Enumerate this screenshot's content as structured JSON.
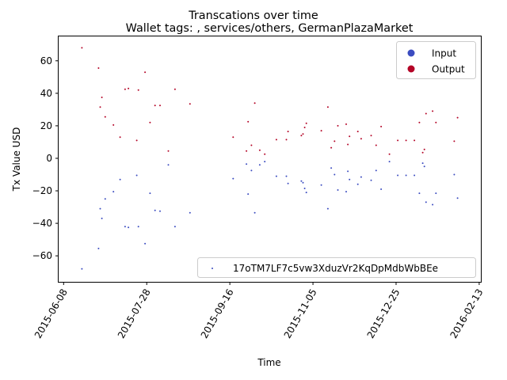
{
  "chart_data": {
    "type": "scatter",
    "title": "Transcations over time",
    "subtitle": "Wallet tags: , services/others, GermanPlazaMarket",
    "xlabel": "Time",
    "ylabel": "Tx Value USD",
    "xlim": [
      "2015-06-05",
      "2016-02-14"
    ],
    "ylim": [
      -76,
      75
    ],
    "x_ticks": [
      "2015-06-08",
      "2015-07-28",
      "2015-09-16",
      "2015-11-05",
      "2015-12-25",
      "2016-02-13"
    ],
    "y_ticks": [
      -60,
      -40,
      -20,
      0,
      20,
      40,
      60
    ],
    "grid": false,
    "legend_upper": {
      "placement": "top-right",
      "entries": [
        {
          "label": "Input",
          "color": "#3b4cc0"
        },
        {
          "label": "Output",
          "color": "#b40426"
        }
      ]
    },
    "legend_lower": {
      "placement": "bottom-right",
      "label": "17oTM7LF7c5vw3XduzVr2KqDpMdbWbBEe",
      "color": "#3b4cc0"
    },
    "series": [
      {
        "name": "Output",
        "color": "#b40426",
        "points": [
          [
            "2015-06-19",
            68
          ],
          [
            "2015-06-29",
            55.5
          ],
          [
            "2015-06-30",
            31.5
          ],
          [
            "2015-07-01",
            37.5
          ],
          [
            "2015-07-03",
            25.5
          ],
          [
            "2015-07-08",
            20.5
          ],
          [
            "2015-07-12",
            13
          ],
          [
            "2015-07-15",
            42.5
          ],
          [
            "2015-07-17",
            43
          ],
          [
            "2015-07-22",
            11
          ],
          [
            "2015-07-23",
            42
          ],
          [
            "2015-07-27",
            53
          ],
          [
            "2015-07-30",
            22
          ],
          [
            "2015-08-02",
            32.5
          ],
          [
            "2015-08-05",
            32.5
          ],
          [
            "2015-08-10",
            4.5
          ],
          [
            "2015-08-14",
            42.5
          ],
          [
            "2015-08-23",
            33.5
          ],
          [
            "2015-09-18",
            13
          ],
          [
            "2015-09-26",
            4.5
          ],
          [
            "2015-09-27",
            22.5
          ],
          [
            "2015-09-29",
            8
          ],
          [
            "2015-10-01",
            34
          ],
          [
            "2015-10-04",
            5
          ],
          [
            "2015-10-07",
            2.5
          ],
          [
            "2015-10-14",
            11.5
          ],
          [
            "2015-10-20",
            11.5
          ],
          [
            "2015-10-21",
            16.5
          ],
          [
            "2015-10-29",
            14
          ],
          [
            "2015-10-30",
            15
          ],
          [
            "2015-10-31",
            19
          ],
          [
            "2015-11-01",
            21.5
          ],
          [
            "2015-11-10",
            17
          ],
          [
            "2015-11-14",
            31.5
          ],
          [
            "2015-11-16",
            6.5
          ],
          [
            "2015-11-18",
            10.5
          ],
          [
            "2015-11-20",
            20
          ],
          [
            "2015-11-25",
            21
          ],
          [
            "2015-11-26",
            8.5
          ],
          [
            "2015-11-27",
            13.5
          ],
          [
            "2015-12-02",
            16.5
          ],
          [
            "2015-12-04",
            12
          ],
          [
            "2015-12-10",
            14
          ],
          [
            "2015-12-13",
            8
          ],
          [
            "2015-12-16",
            19.5
          ],
          [
            "2015-12-21",
            2.5
          ],
          [
            "2015-12-26",
            11
          ],
          [
            "2015-12-31",
            11
          ],
          [
            "2016-01-05",
            11
          ],
          [
            "2016-01-08",
            22
          ],
          [
            "2016-01-10",
            3.5
          ],
          [
            "2016-01-11",
            5.5
          ],
          [
            "2016-01-12",
            27.5
          ],
          [
            "2016-01-16",
            29
          ],
          [
            "2016-01-18",
            22
          ],
          [
            "2016-01-29",
            10.5
          ],
          [
            "2016-01-31",
            25
          ]
        ]
      },
      {
        "name": "Input",
        "color": "#3b4cc0",
        "points": [
          [
            "2015-06-19",
            -68
          ],
          [
            "2015-06-29",
            -55.5
          ],
          [
            "2015-06-30",
            -31
          ],
          [
            "2015-07-01",
            -37
          ],
          [
            "2015-07-03",
            -25
          ],
          [
            "2015-07-08",
            -20.5
          ],
          [
            "2015-07-12",
            -13
          ],
          [
            "2015-07-15",
            -42
          ],
          [
            "2015-07-17",
            -42.5
          ],
          [
            "2015-07-22",
            -10.5
          ],
          [
            "2015-07-23",
            -42
          ],
          [
            "2015-07-27",
            -52.5
          ],
          [
            "2015-07-30",
            -21.5
          ],
          [
            "2015-08-02",
            -32
          ],
          [
            "2015-08-05",
            -32.5
          ],
          [
            "2015-08-10",
            -4
          ],
          [
            "2015-08-14",
            -42
          ],
          [
            "2015-08-23",
            -33.5
          ],
          [
            "2015-09-18",
            -12.5
          ],
          [
            "2015-09-26",
            -3.5
          ],
          [
            "2015-09-27",
            -22
          ],
          [
            "2015-09-29",
            -7.5
          ],
          [
            "2015-10-01",
            -33.5
          ],
          [
            "2015-10-04",
            -4
          ],
          [
            "2015-10-07",
            -2
          ],
          [
            "2015-10-14",
            -11
          ],
          [
            "2015-10-20",
            -11
          ],
          [
            "2015-10-21",
            -15.5
          ],
          [
            "2015-10-29",
            -14
          ],
          [
            "2015-10-30",
            -15
          ],
          [
            "2015-10-31",
            -18.5
          ],
          [
            "2015-11-01",
            -21
          ],
          [
            "2015-11-10",
            -16.5
          ],
          [
            "2015-11-14",
            -31
          ],
          [
            "2015-11-16",
            -6
          ],
          [
            "2015-11-18",
            -10
          ],
          [
            "2015-11-20",
            -19.5
          ],
          [
            "2015-11-25",
            -20.5
          ],
          [
            "2015-11-26",
            -8
          ],
          [
            "2015-11-27",
            -13
          ],
          [
            "2015-12-02",
            -16
          ],
          [
            "2015-12-04",
            -11.5
          ],
          [
            "2015-12-10",
            -13.5
          ],
          [
            "2015-12-13",
            -7.5
          ],
          [
            "2015-12-16",
            -19
          ],
          [
            "2015-12-21",
            -2
          ],
          [
            "2015-12-26",
            -10.5
          ],
          [
            "2015-12-31",
            -10.5
          ],
          [
            "2016-01-05",
            -10.5
          ],
          [
            "2016-01-08",
            -21.5
          ],
          [
            "2016-01-10",
            -3
          ],
          [
            "2016-01-11",
            -5
          ],
          [
            "2016-01-12",
            -27
          ],
          [
            "2016-01-16",
            -28.5
          ],
          [
            "2016-01-18",
            -21.5
          ],
          [
            "2016-01-29",
            -10
          ],
          [
            "2016-01-31",
            -24.5
          ]
        ]
      }
    ]
  }
}
